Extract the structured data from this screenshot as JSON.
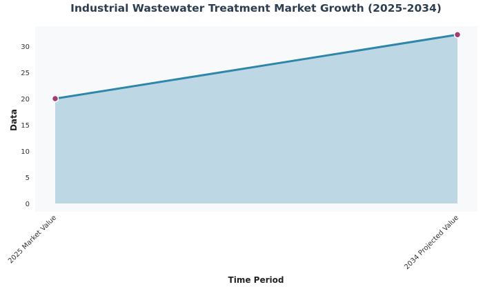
{
  "chart_data": {
    "type": "area",
    "title": "Industrial Wastewater Treatment Market Growth (2025-2034)",
    "xlabel": "Time Period",
    "ylabel": "Data",
    "categories": [
      "2025 Market Value",
      "2034 Projected Value"
    ],
    "series": [
      {
        "name": "Data",
        "values": [
          20.0,
          32.2
        ]
      }
    ],
    "ylim": [
      -1.6,
      33.8
    ],
    "yticks": [
      0,
      5,
      10,
      15,
      20,
      25,
      30
    ],
    "grid": false,
    "legend": null,
    "colors": {
      "line": "#2e86ab",
      "fill": "#a9cbdc",
      "marker": "#a23b72",
      "plot_bg": "#f8f9fa",
      "title": "#2c3e50"
    }
  }
}
